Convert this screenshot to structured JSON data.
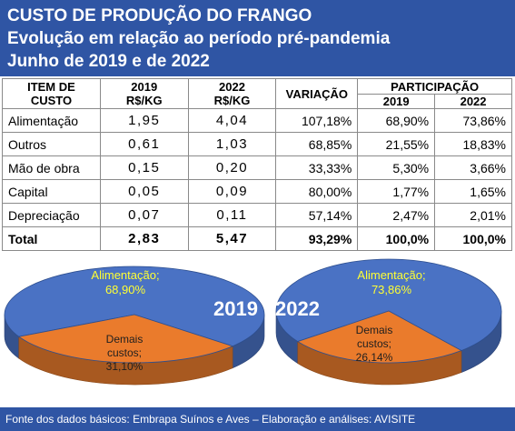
{
  "header": {
    "line1": "CUSTO DE PRODUÇÃO DO FRANGO",
    "line2": "Evolução em relação ao período pré-pandemia",
    "line3": "Junho de 2019 e de 2022"
  },
  "table": {
    "col_item_l1": "ITEM DE",
    "col_item_l2": "CUSTO",
    "col_2019_l1": "2019",
    "col_2019_l2": "R$/KG",
    "col_2022_l1": "2022",
    "col_2022_l2": "R$/KG",
    "col_variacao": "VARIAÇÃO",
    "col_participacao": "PARTICIPAÇÃO",
    "col_part_2019": "2019",
    "col_part_2022": "2022",
    "rows": [
      {
        "item": "Alimentação",
        "v2019": "1,95",
        "v2022": "4,04",
        "variacao": "107,18%",
        "p2019": "68,90%",
        "p2022": "73,86%"
      },
      {
        "item": "Outros",
        "v2019": "0,61",
        "v2022": "1,03",
        "variacao": "68,85%",
        "p2019": "21,55%",
        "p2022": "18,83%"
      },
      {
        "item": "Mão de obra",
        "v2019": "0,15",
        "v2022": "0,20",
        "variacao": "33,33%",
        "p2019": "5,30%",
        "p2022": "3,66%"
      },
      {
        "item": "Capital",
        "v2019": "0,05",
        "v2022": "0,09",
        "variacao": "80,00%",
        "p2019": "1,77%",
        "p2022": "1,65%"
      },
      {
        "item": "Depreciação",
        "v2019": "0,07",
        "v2022": "0,11",
        "variacao": "57,14%",
        "p2019": "2,47%",
        "p2022": "2,01%"
      }
    ],
    "total": {
      "item": "Total",
      "v2019": "2,83",
      "v2022": "5,47",
      "variacao": "93,29%",
      "p2019": "100,0%",
      "p2022": "100,0%"
    }
  },
  "chart_data": [
    {
      "type": "pie",
      "year_label": "2019",
      "categories": [
        "Alimentação;",
        "Demais custos;"
      ],
      "values": [
        68.9,
        31.1
      ],
      "value_labels": [
        "68,90%",
        "31,10%"
      ],
      "colors": [
        "#4a72c4",
        "#ea7b2c"
      ]
    },
    {
      "type": "pie",
      "year_label": "2022",
      "categories": [
        "Alimentação;",
        "Demais custos;"
      ],
      "values": [
        73.86,
        26.14
      ],
      "value_labels": [
        "73,86%",
        "26,14%"
      ],
      "colors": [
        "#4a72c4",
        "#ea7b2c"
      ]
    }
  ],
  "footer": {
    "text": "Fonte dos dados básicos: Embrapa Suínos e Aves – Elaboração e análises: AVISITE"
  }
}
